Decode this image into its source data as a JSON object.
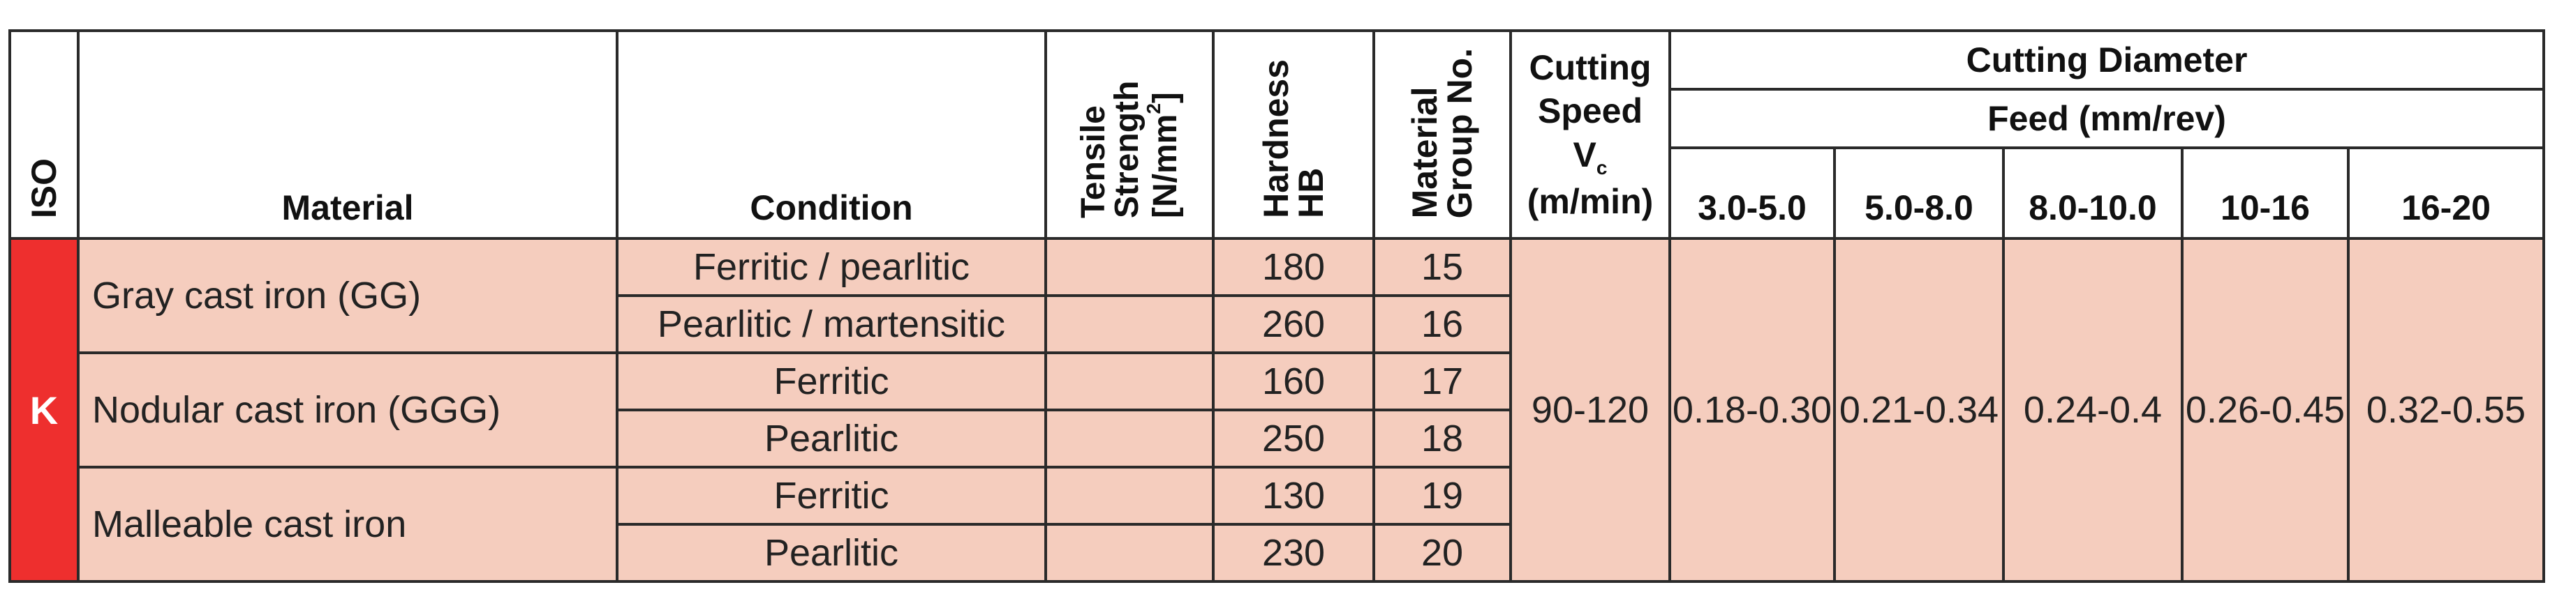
{
  "headers": {
    "iso": "ISO",
    "material": "Material",
    "condition": "Condition",
    "tensile_strength": "Tensile Strength [N/mm",
    "tensile_strength_sup": "2",
    "tensile_strength_end": "]",
    "hardness_l1": "Hardness",
    "hardness_l2": "HB",
    "material_group_l1": "Material",
    "material_group_l2": "Group No.",
    "cutting_speed_l1": "Cutting",
    "cutting_speed_l2": "Speed",
    "cutting_speed_v": "V",
    "cutting_speed_sub": "c",
    "cutting_speed_unit": "(m/min)",
    "cutting_diameter": "Cutting Diameter",
    "feed": "Feed (mm/rev)",
    "diameters": [
      "3.0-5.0",
      "5.0-8.0",
      "8.0-10.0",
      "10-16",
      "16-20"
    ]
  },
  "iso_group": "K",
  "materials": [
    {
      "name": "Gray cast iron (GG)",
      "rows": [
        {
          "condition": "Ferritic / pearlitic",
          "tensile": "",
          "hardness": "180",
          "group": "15"
        },
        {
          "condition": "Pearlitic / martensitic",
          "tensile": "",
          "hardness": "260",
          "group": "16"
        }
      ]
    },
    {
      "name": "Nodular cast iron (GGG)",
      "rows": [
        {
          "condition": "Ferritic",
          "tensile": "",
          "hardness": "160",
          "group": "17"
        },
        {
          "condition": "Pearlitic",
          "tensile": "",
          "hardness": "250",
          "group": "18"
        }
      ]
    },
    {
      "name": "Malleable cast iron",
      "rows": [
        {
          "condition": "Ferritic",
          "tensile": "",
          "hardness": "130",
          "group": "19"
        },
        {
          "condition": "Pearlitic",
          "tensile": "",
          "hardness": "230",
          "group": "20"
        }
      ]
    }
  ],
  "cutting_speed": "90-120",
  "feeds": [
    "0.18-0.30",
    "0.21-0.34",
    "0.24-0.4",
    "0.26-0.45",
    "0.32-0.55"
  ],
  "colors": {
    "iso_k": "#ee2f2e",
    "body_fill": "#f5cdbe",
    "border": "#2a2a2a"
  }
}
